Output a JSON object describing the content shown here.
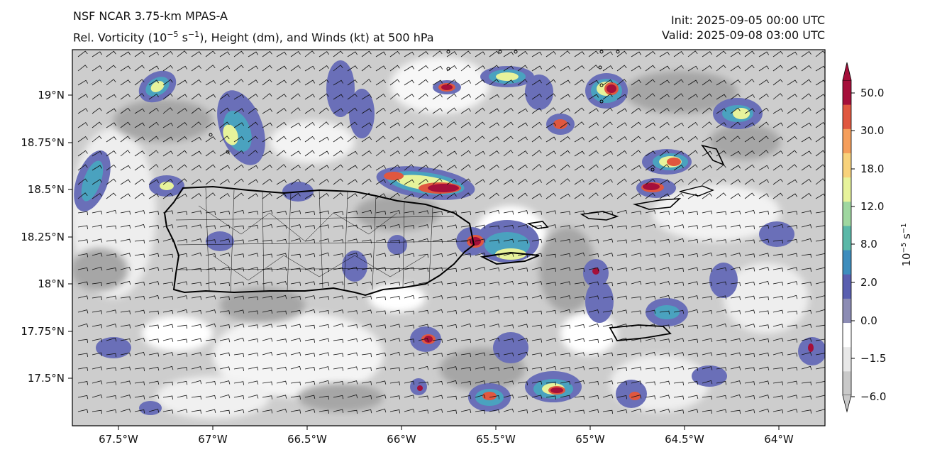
{
  "header": {
    "model": "NSF NCAR 3.75-km MPAS-A",
    "field_prefix": "Rel. Vorticity (10",
    "field_exp": "−5",
    "field_mid": " s",
    "field_exp2": "−1",
    "field_suffix": "), Height (dm), and Winds (kt) at 500 hPa",
    "init": "Init: 2025-09-05 00:00 UTC",
    "valid": "Valid: 2025-09-08 03:00 UTC"
  },
  "map": {
    "lat_labels": [
      "19°N",
      "18.75°N",
      "18.5°N",
      "18.25°N",
      "18°N",
      "17.75°N",
      "17.5°N"
    ],
    "lon_labels": [
      "67.5°W",
      "67°W",
      "66.5°W",
      "66°W",
      "65.5°W",
      "65°W",
      "64.5°W",
      "64°W"
    ]
  },
  "colorbar": {
    "tick_labels": [
      "50.0",
      "30.0",
      "18.0",
      "12.0",
      "8.0",
      "2.0",
      "0.0",
      "−1.5",
      "−6.0"
    ],
    "unit_base": "10",
    "unit_exp": "−5",
    "unit_s": " s",
    "unit_exp2": "−1",
    "colors": [
      "#c9c9c9",
      "#e8e8e8",
      "#ffffff",
      "#8c8cb4",
      "#5a5fb0",
      "#3e8dbd",
      "#5bb8a8",
      "#9fd7a0",
      "#e7f39b",
      "#f8d27b",
      "#f59e5b",
      "#e0573f",
      "#a50f3a"
    ]
  }
}
